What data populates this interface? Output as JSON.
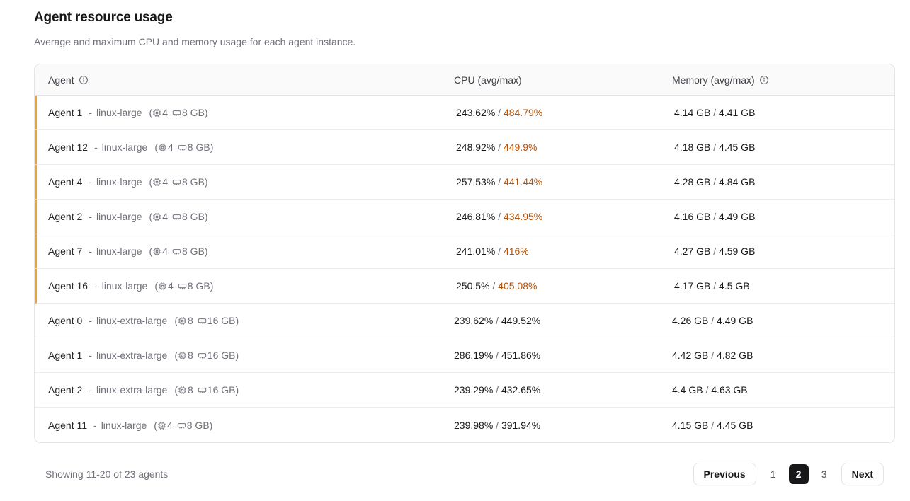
{
  "colors": {
    "flag_bar": "#e7a33c",
    "hot_value": "#b45309",
    "active_page_bg": "#18181b"
  },
  "page": {
    "title": "Agent resource usage",
    "subtitle": "Average and maximum CPU and memory usage for each agent instance."
  },
  "table": {
    "columns": {
      "agent": "Agent",
      "cpu": "CPU (avg/max)",
      "memory": "Memory (avg/max)"
    },
    "separator": "-",
    "slash": " / ",
    "spec_open": "(",
    "spec_close": ")",
    "rows": [
      {
        "agent": "Agent 1",
        "instance": "linux-large",
        "cpus": "4",
        "ram": "8 GB",
        "cpu_avg": "243.62%",
        "cpu_max": "484.79%",
        "cpu_hot": true,
        "mem_avg": "4.14 GB",
        "mem_max": "4.41 GB",
        "flagged": true
      },
      {
        "agent": "Agent 12",
        "instance": "linux-large",
        "cpus": "4",
        "ram": "8 GB",
        "cpu_avg": "248.92%",
        "cpu_max": "449.9%",
        "cpu_hot": true,
        "mem_avg": "4.18 GB",
        "mem_max": "4.45 GB",
        "flagged": true
      },
      {
        "agent": "Agent 4",
        "instance": "linux-large",
        "cpus": "4",
        "ram": "8 GB",
        "cpu_avg": "257.53%",
        "cpu_max": "441.44%",
        "cpu_hot": true,
        "mem_avg": "4.28 GB",
        "mem_max": "4.84 GB",
        "flagged": true
      },
      {
        "agent": "Agent 2",
        "instance": "linux-large",
        "cpus": "4",
        "ram": "8 GB",
        "cpu_avg": "246.81%",
        "cpu_max": "434.95%",
        "cpu_hot": true,
        "mem_avg": "4.16 GB",
        "mem_max": "4.49 GB",
        "flagged": true
      },
      {
        "agent": "Agent 7",
        "instance": "linux-large",
        "cpus": "4",
        "ram": "8 GB",
        "cpu_avg": "241.01%",
        "cpu_max": "416%",
        "cpu_hot": true,
        "mem_avg": "4.27 GB",
        "mem_max": "4.59 GB",
        "flagged": true
      },
      {
        "agent": "Agent 16",
        "instance": "linux-large",
        "cpus": "4",
        "ram": "8 GB",
        "cpu_avg": "250.5%",
        "cpu_max": "405.08%",
        "cpu_hot": true,
        "mem_avg": "4.17 GB",
        "mem_max": "4.5 GB",
        "flagged": true
      },
      {
        "agent": "Agent 0",
        "instance": "linux-extra-large",
        "cpus": "8",
        "ram": "16 GB",
        "cpu_avg": "239.62%",
        "cpu_max": "449.52%",
        "cpu_hot": false,
        "mem_avg": "4.26 GB",
        "mem_max": "4.49 GB",
        "flagged": false
      },
      {
        "agent": "Agent 1",
        "instance": "linux-extra-large",
        "cpus": "8",
        "ram": "16 GB",
        "cpu_avg": "286.19%",
        "cpu_max": "451.86%",
        "cpu_hot": false,
        "mem_avg": "4.42 GB",
        "mem_max": "4.82 GB",
        "flagged": false
      },
      {
        "agent": "Agent 2",
        "instance": "linux-extra-large",
        "cpus": "8",
        "ram": "16 GB",
        "cpu_avg": "239.29%",
        "cpu_max": "432.65%",
        "cpu_hot": false,
        "mem_avg": "4.4 GB",
        "mem_max": "4.63 GB",
        "flagged": false
      },
      {
        "agent": "Agent 11",
        "instance": "linux-large",
        "cpus": "4",
        "ram": "8 GB",
        "cpu_avg": "239.98%",
        "cpu_max": "391.94%",
        "cpu_hot": false,
        "mem_avg": "4.15 GB",
        "mem_max": "4.45 GB",
        "flagged": false
      }
    ]
  },
  "footer": {
    "summary": "Showing 11-20 of 23 agents",
    "pagination": {
      "previous": "Previous",
      "pages": [
        "1",
        "2",
        "3"
      ],
      "active_page": "2",
      "next": "Next"
    }
  }
}
